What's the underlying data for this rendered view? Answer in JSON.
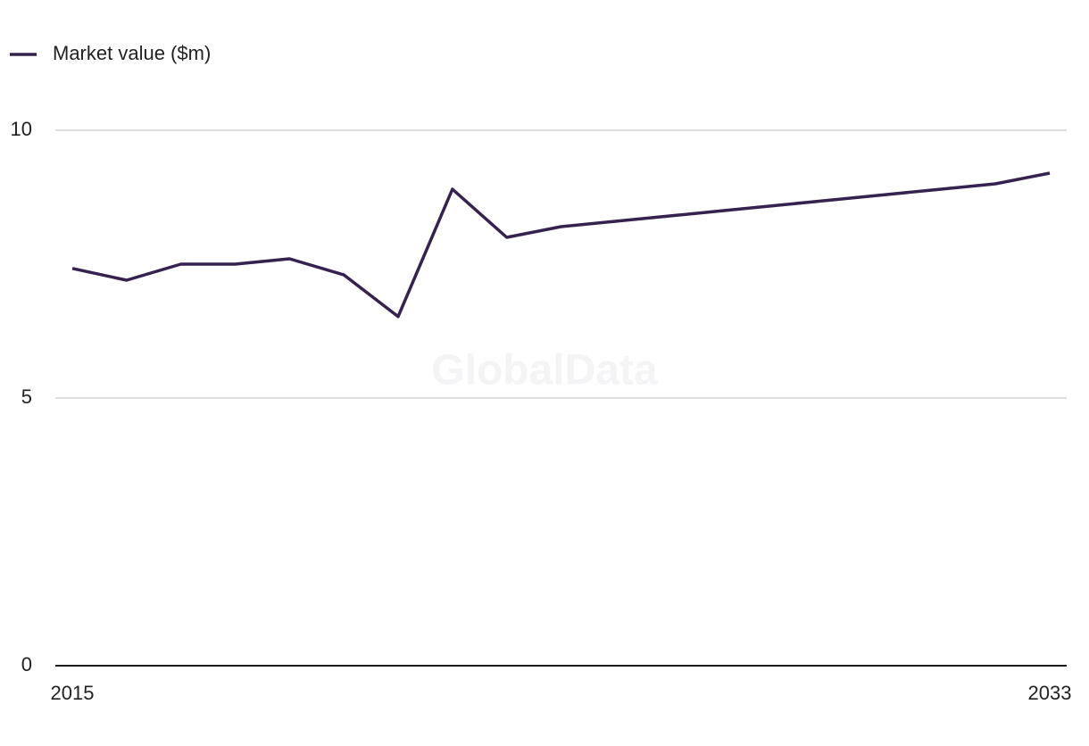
{
  "chart_data": {
    "type": "line",
    "watermark": "GlobalData",
    "x": [
      2015,
      2016,
      2017,
      2018,
      2019,
      2020,
      2021,
      2022,
      2023,
      2024,
      2025,
      2026,
      2027,
      2028,
      2029,
      2030,
      2031,
      2032,
      2033
    ],
    "series": [
      {
        "name": "Market value ($m)",
        "color": "#35224f",
        "values": [
          7.42,
          7.2,
          7.5,
          7.5,
          7.6,
          7.3,
          6.52,
          8.9,
          8.0,
          8.2,
          8.3,
          8.4,
          8.5,
          8.6,
          8.7,
          8.8,
          8.9,
          9.0,
          9.2
        ]
      }
    ],
    "xlim": [
      2015,
      2033
    ],
    "xticks": [
      2015,
      2033
    ],
    "ylim": [
      0,
      10
    ],
    "yticks": [
      0,
      5,
      10
    ],
    "grid": true
  }
}
